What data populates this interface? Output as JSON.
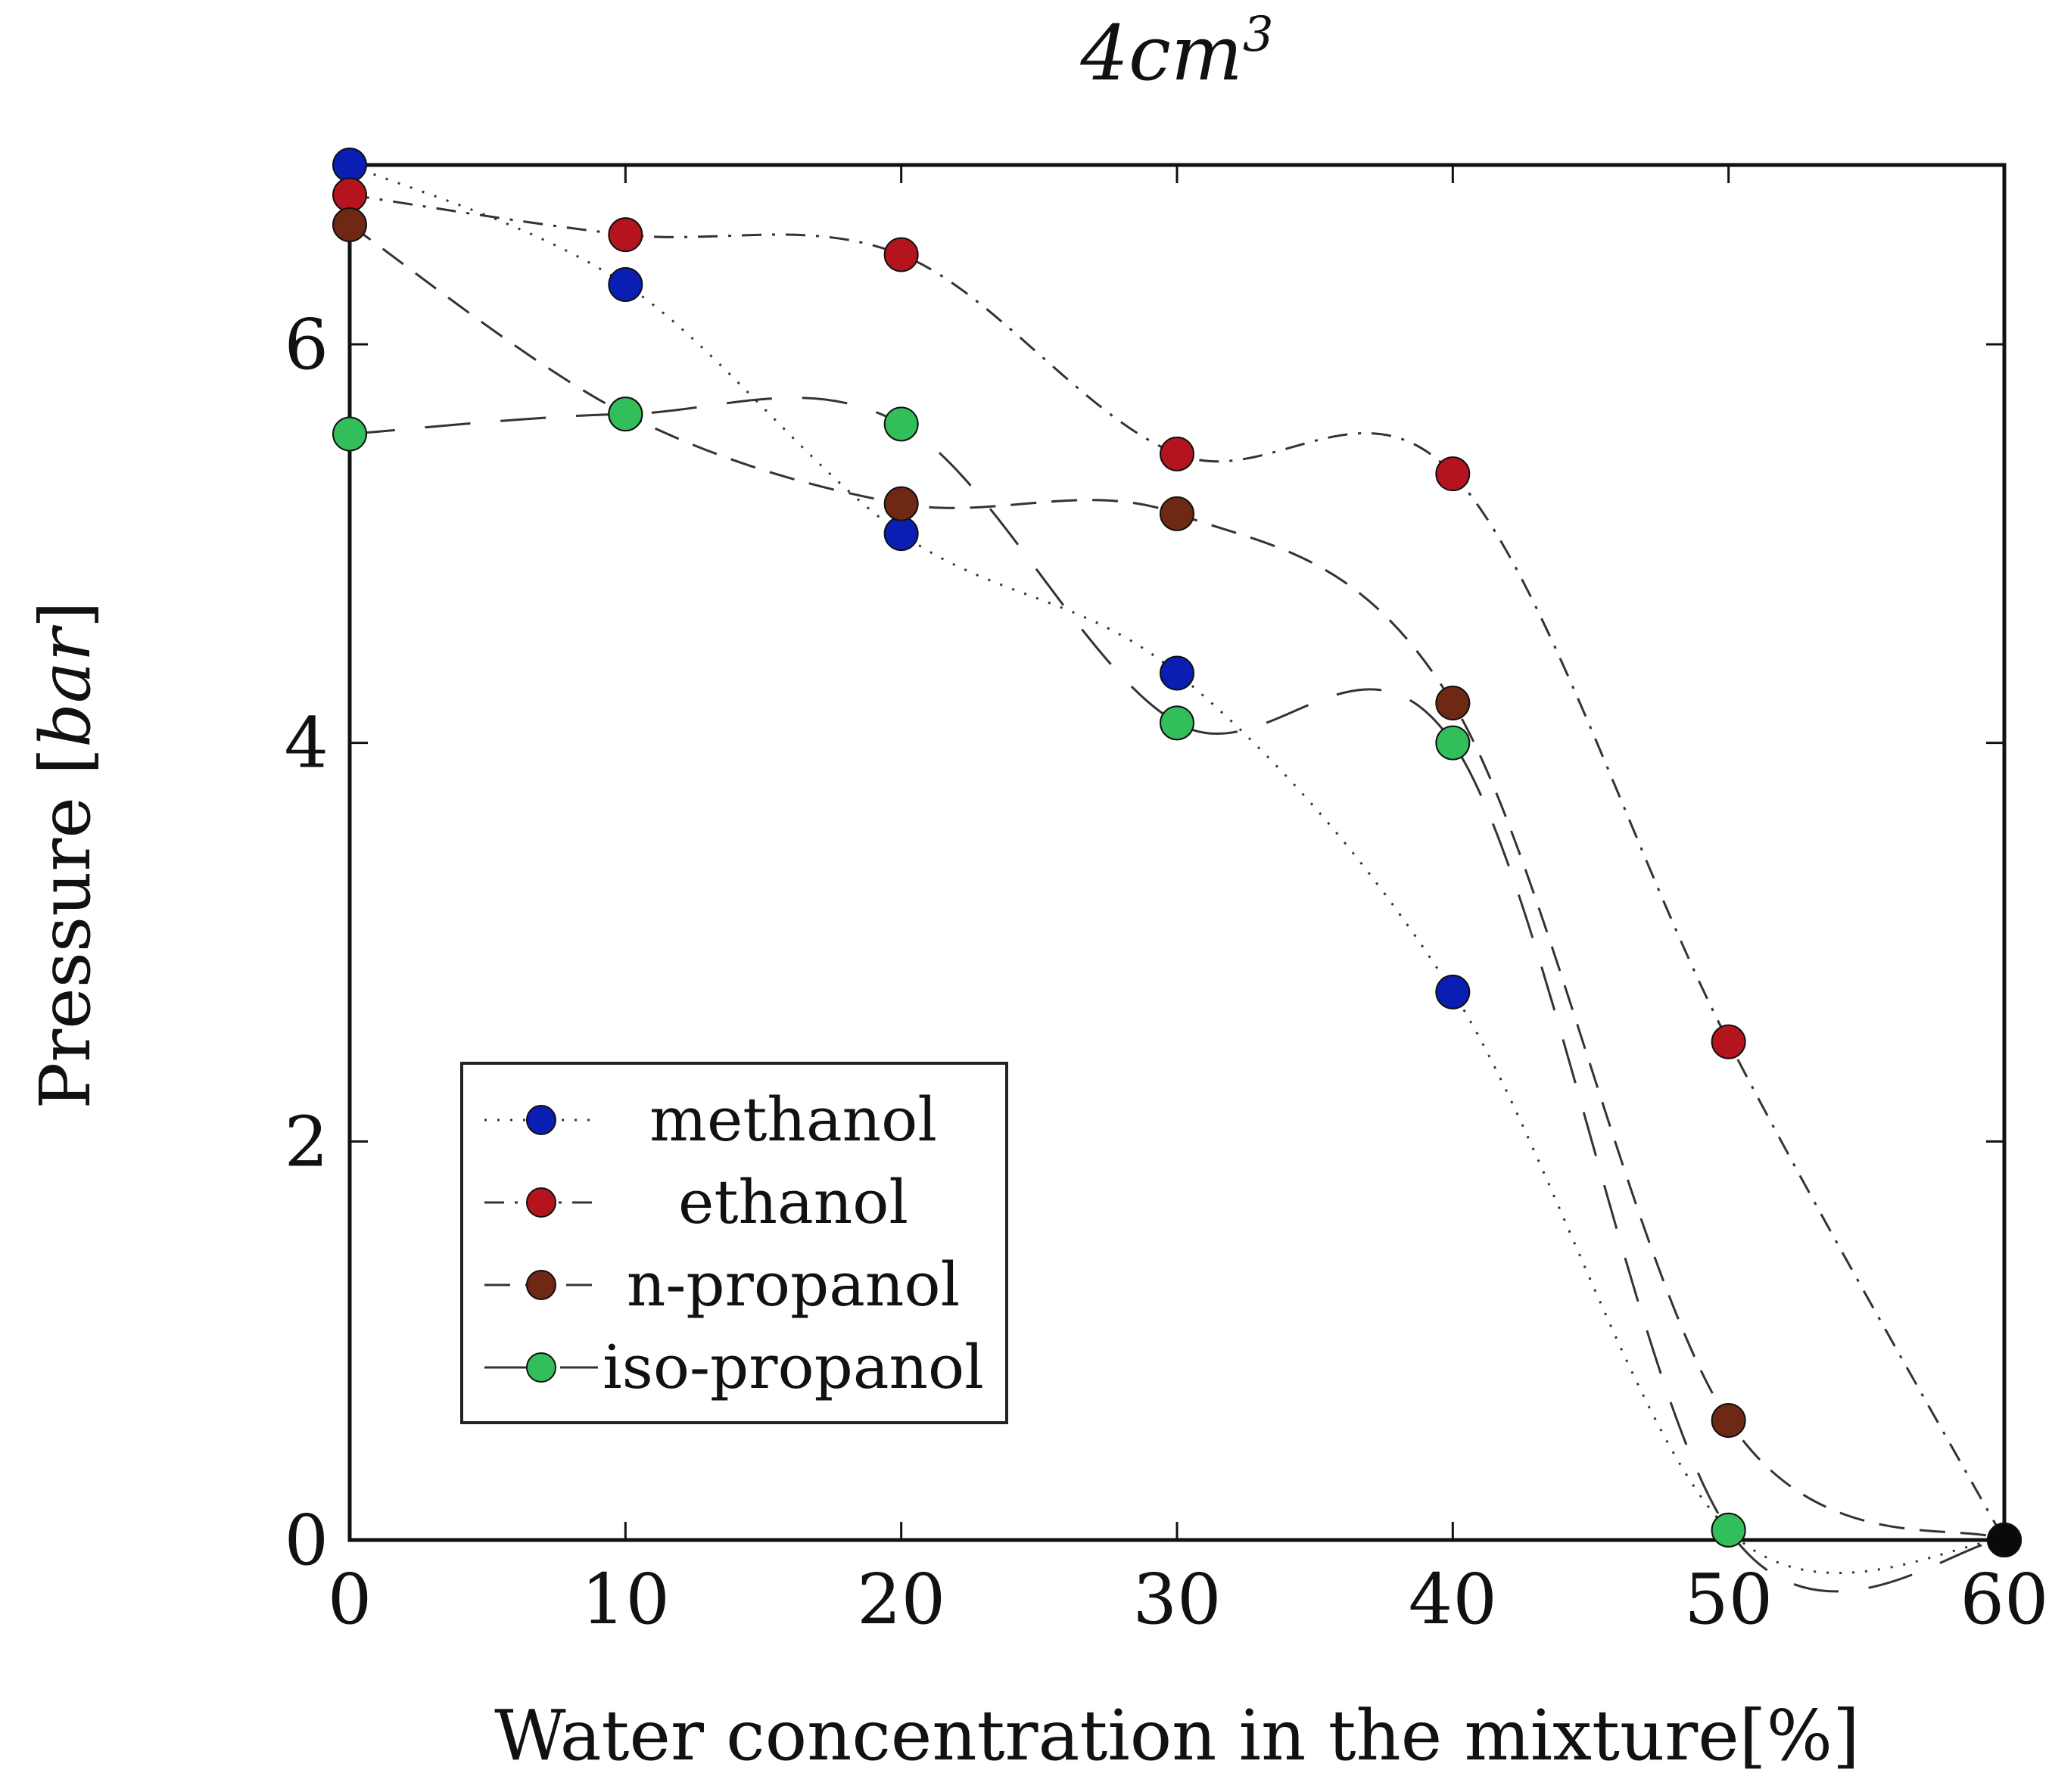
{
  "chart_data": {
    "type": "line",
    "title": "4cm",
    "title_superscript": "3",
    "xlabel": "Water concentration in the mixture[%]",
    "ylabel_prefix": "Pressure [",
    "ylabel_unit": "bar",
    "ylabel_suffix": "]",
    "xlim": [
      0,
      60
    ],
    "ylim": [
      0,
      6.9
    ],
    "x_ticks": [
      0,
      10,
      20,
      30,
      40,
      50,
      60
    ],
    "y_ticks": [
      0,
      2,
      4,
      6
    ],
    "grid": false,
    "legend_position": "bottom-left",
    "series": [
      {
        "name": "methanol",
        "color": "#0a1eb4",
        "line_style": "dotted",
        "x": [
          0,
          10,
          20,
          30,
          40,
          50,
          60
        ],
        "y": [
          6.9,
          6.3,
          5.05,
          4.35,
          2.75,
          0.05,
          0.0
        ]
      },
      {
        "name": "ethanol",
        "color": "#b4141e",
        "line_style": "dash-dot",
        "x": [
          0,
          10,
          20,
          30,
          40,
          50,
          60
        ],
        "y": [
          6.75,
          6.55,
          6.45,
          5.45,
          5.35,
          2.5,
          0.0
        ]
      },
      {
        "name": "n-propanol",
        "color": "#6e2814",
        "line_style": "dashed",
        "x": [
          0,
          10,
          20,
          30,
          40,
          50,
          60
        ],
        "y": [
          6.6,
          5.65,
          5.2,
          5.15,
          4.2,
          0.6,
          0.0
        ]
      },
      {
        "name": "iso-propanol",
        "color": "#32be5a",
        "line_style": "long-dashed",
        "x": [
          0,
          10,
          20,
          30,
          40,
          50,
          60
        ],
        "y": [
          5.55,
          5.65,
          5.6,
          4.1,
          4.0,
          0.05,
          0.0
        ]
      }
    ]
  }
}
